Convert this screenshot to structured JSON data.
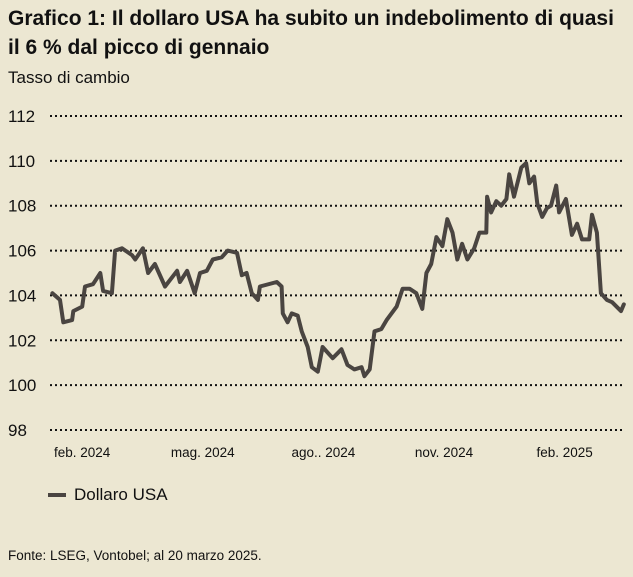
{
  "chart_data": {
    "type": "line",
    "title": "Grafico 1: Il dollaro USA ha subito un indebolimento di quasi il 6 % dal picco di gennaio",
    "ylabel": "Tasso di cambio",
    "xlabel": "",
    "ylim": [
      98,
      112
    ],
    "yticks": [
      98,
      100,
      102,
      104,
      106,
      108,
      110,
      112
    ],
    "ytick_labels": [
      "98",
      "100",
      "102",
      "104",
      "106",
      "108",
      "110",
      "112"
    ],
    "x_unit": "months since feb. 2024",
    "xlim": [
      -0.75,
      13.5
    ],
    "xticks": [
      0,
      3,
      6,
      9,
      12
    ],
    "xtick_labels": [
      "feb. 2024",
      "mag. 2024",
      "ago.. 2024",
      "nov. 2024",
      "feb. 2025"
    ],
    "grid": "horizontal dotted",
    "legend_position": "bottom-left",
    "series": [
      {
        "name": "Dollaro USA",
        "color": "#4a4541",
        "x": [
          -0.74,
          -0.55,
          -0.47,
          -0.25,
          -0.22,
          0,
          0.07,
          0.27,
          0.45,
          0.52,
          0.74,
          0.82,
          0.99,
          1.24,
          1.32,
          1.51,
          1.64,
          1.81,
          2.06,
          2.36,
          2.43,
          2.61,
          2.8,
          2.93,
          3.1,
          3.25,
          3.47,
          3.62,
          3.85,
          3.97,
          4.09,
          4.22,
          4.37,
          4.42,
          4.84,
          4.96,
          4.99,
          5.11,
          5.21,
          5.36,
          5.46,
          5.61,
          5.71,
          5.86,
          5.98,
          6.23,
          6.45,
          6.6,
          6.77,
          6.95,
          7.02,
          7.15,
          7.27,
          7.44,
          7.57,
          7.82,
          7.97,
          8.14,
          8.31,
          8.46,
          8.56,
          8.68,
          8.81,
          8.96,
          9.08,
          9.21,
          9.33,
          9.45,
          9.58,
          9.75,
          9.88,
          10.05,
          10.07,
          10.17,
          10.3,
          10.42,
          10.55,
          10.62,
          10.74,
          10.92,
          11.04,
          11.12,
          11.24,
          11.32,
          11.44,
          11.56,
          11.66,
          11.79,
          11.86,
          12.03,
          12.18,
          12.31,
          12.43,
          12.61,
          12.68,
          12.8,
          12.9,
          13.05,
          13.18,
          13.4,
          13.47
        ],
        "values": [
          104.1,
          103.8,
          102.8,
          102.9,
          103.3,
          103.5,
          104.4,
          104.5,
          105.0,
          104.2,
          104.1,
          106.0,
          106.1,
          105.8,
          105.6,
          106.1,
          105.0,
          105.4,
          104.4,
          105.1,
          104.6,
          105.1,
          104.1,
          105.0,
          105.1,
          105.6,
          105.7,
          106.0,
          105.9,
          104.9,
          105.0,
          104.1,
          103.8,
          104.4,
          104.6,
          104.4,
          103.2,
          102.8,
          103.2,
          103.1,
          102.4,
          101.7,
          100.8,
          100.6,
          101.7,
          101.2,
          101.6,
          100.9,
          100.7,
          100.8,
          100.4,
          100.7,
          102.4,
          102.5,
          102.9,
          103.5,
          104.3,
          104.3,
          104.1,
          103.4,
          105.0,
          105.4,
          106.6,
          106.2,
          107.4,
          106.8,
          105.6,
          106.3,
          105.6,
          106.1,
          106.8,
          106.8,
          108.4,
          107.7,
          108.2,
          108.0,
          108.3,
          109.4,
          108.4,
          109.7,
          109.9,
          109.0,
          109.3,
          108.1,
          107.5,
          107.9,
          108.0,
          108.9,
          107.7,
          108.3,
          106.7,
          107.2,
          106.5,
          106.5,
          107.6,
          106.8,
          104.1,
          103.8,
          103.7,
          103.3,
          103.6
        ]
      }
    ],
    "source": "Fonte: LSEG, Vontobel; al 20 marzo 2025."
  }
}
